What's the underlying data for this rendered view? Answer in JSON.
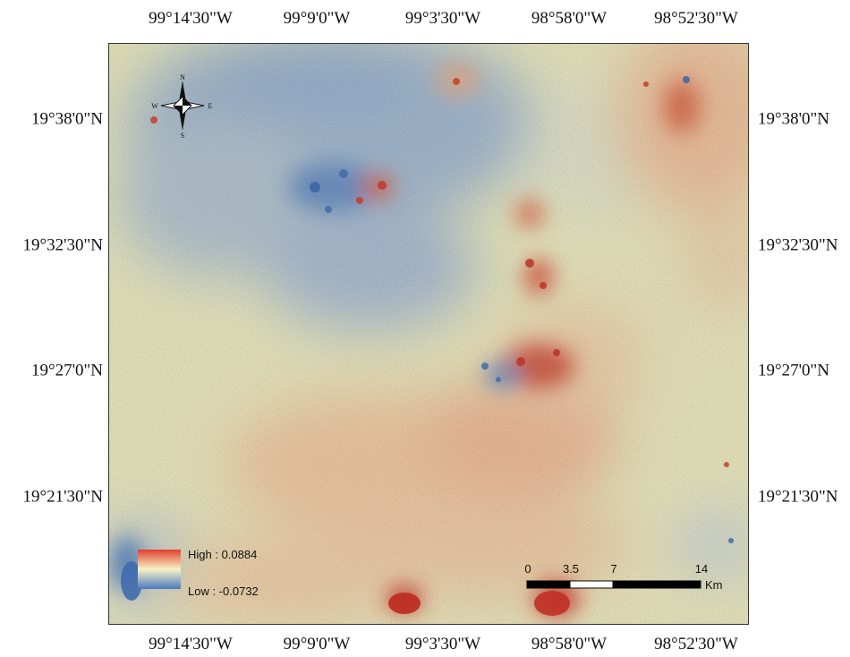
{
  "map": {
    "top_labels": [
      "99°14'30\"W",
      "99°9'0\"W",
      "99°3'30\"W",
      "98°58'0\"W",
      "98°52'30\"W"
    ],
    "bottom_labels": [
      "99°14'30\"W",
      "99°9'0\"W",
      "99°3'30\"W",
      "98°58'0\"W",
      "98°52'30\"W"
    ],
    "left_labels": [
      "19°38'0\"N",
      "19°32'30\"N",
      "19°27'0\"N",
      "19°21'30\"N"
    ],
    "right_labels": [
      "19°38'0\"N",
      "19°32'30\"N",
      "19°27'0\"N",
      "19°21'30\"N"
    ]
  },
  "compass": {
    "n": "N",
    "s": "S",
    "e": "E",
    "w": "W"
  },
  "legend": {
    "high_label": "High : 0.0884",
    "low_label": "Low : -0.0732",
    "high_color": "#e0402f",
    "mid_color": "#f7f3c6",
    "low_color": "#4a7ac0"
  },
  "scalebar": {
    "ticks": [
      "0",
      "3.5",
      "7",
      "14"
    ],
    "unit": "Km"
  }
}
